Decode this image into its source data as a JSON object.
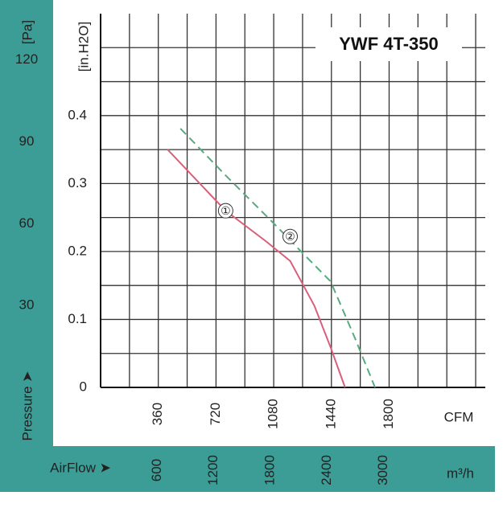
{
  "chart_data": {
    "type": "line",
    "title": "YWF 4T-350",
    "y_label": "[in.H2O]",
    "y2_label": "[Pa]",
    "y2_axis_title": "Pressure ➤",
    "x_label": "CFM",
    "x2_label": "m³/h",
    "x2_axis_title": "AirFlow ➤",
    "xlim": [
      0,
      2400
    ],
    "xticks": [
      360,
      720,
      1080,
      1440,
      1800
    ],
    "x_grid_minor": [
      180,
      540,
      900,
      1260,
      1620,
      1980,
      2160,
      2340
    ],
    "x2lim": [
      0,
      4078
    ],
    "x2ticks": [
      600,
      1200,
      1800,
      2400,
      3000
    ],
    "ylim": [
      0,
      0.55
    ],
    "yticks": [
      0,
      0.1,
      0.2,
      0.3,
      0.4
    ],
    "y_grid_minor": [
      0.05,
      0.15,
      0.25,
      0.35,
      0.45,
      0.5
    ],
    "y2lim": [
      0,
      137
    ],
    "y2ticks": [
      30,
      60,
      90,
      120
    ],
    "grid": true,
    "series": [
      {
        "name": "①",
        "color": "#d9607a",
        "dashed": false,
        "x": [
          418,
          780,
          1032,
          1183,
          1334,
          1435,
          1525
        ],
        "values": [
          0.35,
          0.26,
          0.215,
          0.186,
          0.12,
          0.059,
          0
        ]
      },
      {
        "name": "②",
        "color": "#5aaa80",
        "dashed": true,
        "x": [
          498,
          780,
          1082,
          1284,
          1435,
          1586,
          1712
        ],
        "values": [
          0.381,
          0.312,
          0.241,
          0.192,
          0.156,
          0.073,
          0
        ]
      }
    ]
  }
}
